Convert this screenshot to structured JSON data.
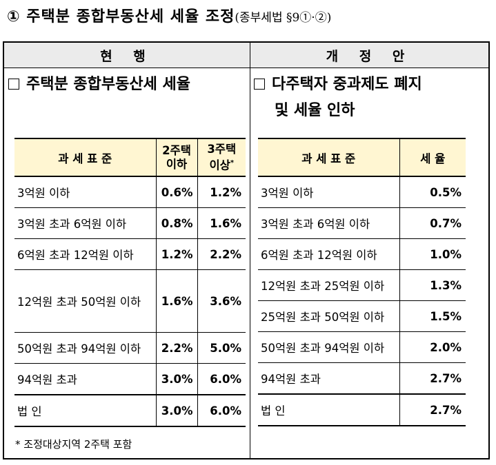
{
  "title": {
    "main": "① 주택분 종합부동산세 세율 조정",
    "sub": "(종부세법 §9①·②)"
  },
  "headers": {
    "current": "현 행",
    "revised": "개 정 안"
  },
  "current": {
    "heading": "주택분 종합부동산세 세율",
    "table_headers": [
      "과 세 표 준",
      "2주택 이하",
      "3주택 이상*"
    ],
    "rows": [
      [
        "3억원 이하",
        "0.6%",
        "1.2%"
      ],
      [
        "3억원 초과 6억원 이하",
        "0.8%",
        "1.6%"
      ],
      [
        "6억원 초과 12억원 이하",
        "1.2%",
        "2.2%"
      ],
      [
        "12억원 초과 50억원 이하",
        "1.6%",
        "3.6%"
      ],
      [
        "50억원 초과 94억원 이하",
        "2.2%",
        "5.0%"
      ],
      [
        "94억원 초과",
        "3.0%",
        "6.0%"
      ],
      [
        "법 인",
        "3.0%",
        "6.0%"
      ]
    ],
    "note": "* 조정대상지역 2주택 포함"
  },
  "revised": {
    "heading_line1": "다주택자 중과제도 폐지",
    "heading_line2": "및 세율 인하",
    "table_headers": [
      "과 세 표 준",
      "세 율"
    ],
    "rows": [
      [
        "3억원 이하",
        "0.5%"
      ],
      [
        "3억원 초과 6억원 이하",
        "0.7%"
      ],
      [
        "6억원 초과 12억원 이하",
        "1.0%"
      ],
      [
        "12억원 초과 25억원 이하",
        "1.3%"
      ],
      [
        "25억원 초과 50억원 이하",
        "1.5%"
      ],
      [
        "50억원 초과 94억원 이하",
        "2.0%"
      ],
      [
        "94억원 초과",
        "2.7%"
      ],
      [
        "법 인",
        "2.7%"
      ]
    ]
  }
}
